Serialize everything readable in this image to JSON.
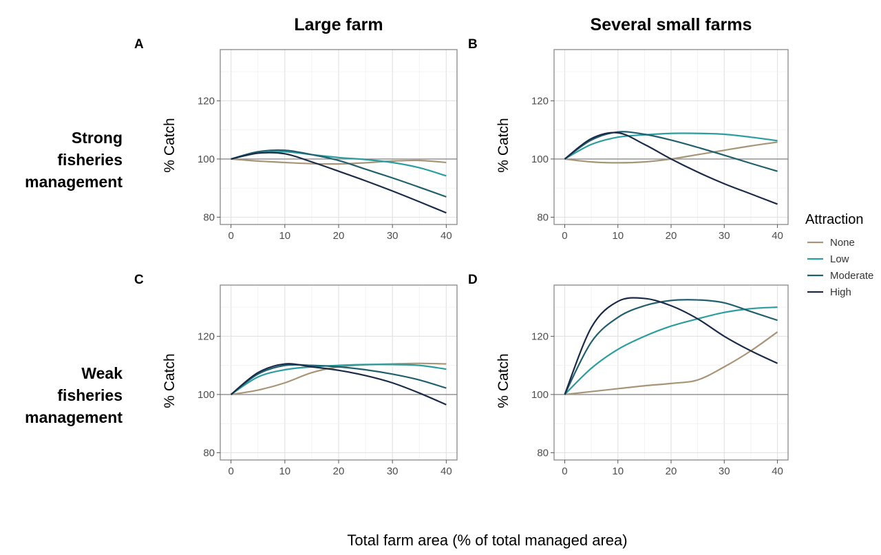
{
  "chart_data": {
    "type": "line",
    "xlabel": "Total farm area (% of total managed area)",
    "column_titles": [
      "Large farm",
      "Several small farms"
    ],
    "row_titles": [
      [
        "Strong",
        "fisheries",
        "management"
      ],
      [
        "Weak",
        "fisheries",
        "management"
      ]
    ],
    "legend": {
      "title": "Attraction",
      "placement": "right",
      "entries": [
        "None",
        "Low",
        "Moderate",
        "High"
      ]
    },
    "colors": {
      "None": "#a89476",
      "Low": "#2a9d9f",
      "Moderate": "#1f5f6e",
      "High": "#1a2a48",
      "reference": "#8c8c8c"
    },
    "x": [
      0,
      5,
      10,
      15,
      20,
      25,
      30,
      35,
      40
    ],
    "xticks": [
      0,
      10,
      20,
      30,
      40
    ],
    "yticks": [
      80,
      100,
      120
    ],
    "xlim": [
      -2,
      42
    ],
    "ylim": [
      77.5,
      137.6
    ],
    "reference_line": 100,
    "grid": true,
    "panels": [
      {
        "letter": "A",
        "ylabel": "% Catch",
        "series": [
          {
            "name": "None",
            "values": [
              100,
              99.3,
              98.8,
              98.4,
              98.3,
              98.7,
              99.3,
              99.5,
              98.8
            ]
          },
          {
            "name": "Low",
            "values": [
              100,
              102,
              102.5,
              101.5,
              100.5,
              99.8,
              98.8,
              97,
              94.2
            ]
          },
          {
            "name": "Moderate",
            "values": [
              100,
              102.5,
              103,
              101.5,
              99.5,
              96.5,
              93.5,
              90.3,
              87
            ]
          },
          {
            "name": "High",
            "values": [
              100,
              102,
              101.8,
              99,
              95.8,
              92.5,
              89,
              85.3,
              81.5
            ]
          }
        ]
      },
      {
        "letter": "B",
        "ylabel": "% Catch",
        "series": [
          {
            "name": "None",
            "values": [
              100,
              99,
              98.7,
              99,
              100,
              101.5,
              103,
              104.5,
              105.8
            ]
          },
          {
            "name": "Low",
            "values": [
              100,
              105,
              107.5,
              108.3,
              108.8,
              108.8,
              108.5,
              107.5,
              106.3
            ]
          },
          {
            "name": "Moderate",
            "values": [
              100,
              106.5,
              109.3,
              108.5,
              106.5,
              104,
              101.3,
              98.5,
              95.8
            ]
          },
          {
            "name": "High",
            "values": [
              100,
              107,
              109,
              105,
              100,
              95.5,
              91.5,
              88,
              84.5
            ]
          }
        ]
      },
      {
        "letter": "C",
        "ylabel": "% Catch",
        "series": [
          {
            "name": "None",
            "values": [
              100,
              101.5,
              104,
              107.5,
              109.5,
              110.2,
              110.5,
              110.7,
              110.5
            ]
          },
          {
            "name": "Low",
            "values": [
              100,
              106,
              108.5,
              109.5,
              110,
              110.3,
              110.3,
              110,
              108.7
            ]
          },
          {
            "name": "Moderate",
            "values": [
              100,
              107,
              110,
              110,
              109.5,
              108.5,
              107,
              105,
              102.2
            ]
          },
          {
            "name": "High",
            "values": [
              100,
              107.5,
              110.5,
              109.5,
              108.3,
              106.5,
              104,
              100.5,
              96.5
            ]
          }
        ]
      },
      {
        "letter": "D",
        "ylabel": "% Catch",
        "series": [
          {
            "name": "None",
            "values": [
              100,
              101,
              102,
              103,
              103.8,
              105,
              109.5,
              115,
              121.5
            ]
          },
          {
            "name": "Low",
            "values": [
              100,
              109,
              115.5,
              120,
              123.5,
              126,
              128.2,
              129.5,
              130
            ]
          },
          {
            "name": "Moderate",
            "values": [
              100,
              118,
              126.5,
              130.5,
              132.3,
              132.5,
              131.5,
              128.5,
              125.5
            ]
          },
          {
            "name": "High",
            "values": [
              100,
              123,
              132,
              133,
              130.5,
              126,
              120,
              115,
              110.7
            ]
          }
        ]
      }
    ]
  }
}
